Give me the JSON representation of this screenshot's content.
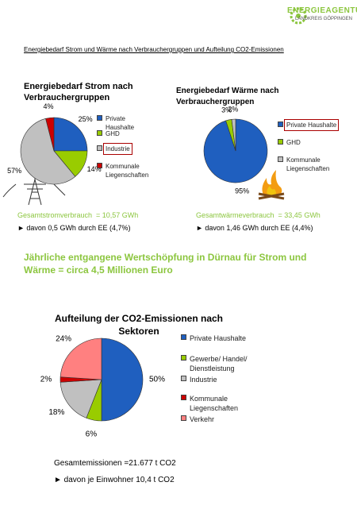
{
  "logo": {
    "title": "ENERGIEAGENTUR",
    "subtitle": "LANDKREIS GÖPPINGEN"
  },
  "heading": "Energiebedarf Strom und Wärme nach Verbrauchergruppen und Aufteilung CO2-Emissionen",
  "chart_data": [
    {
      "type": "pie",
      "title": "Energiebedarf Strom nach Verbrauchergruppen",
      "categories": [
        "Private Haushalte",
        "GHD",
        "Industrie",
        "Kommunale Liegenschaften"
      ],
      "values": [
        25,
        14,
        57,
        4
      ],
      "value_labels": [
        "25%",
        "14%",
        "57%",
        "4%"
      ],
      "colors": [
        "#1f5fbf",
        "#99cc00",
        "#c0c0c0",
        "#cc0000"
      ],
      "highlight": 2
    },
    {
      "type": "pie",
      "title": "Energiebedarf Wärme nach Verbrauchergruppen",
      "categories": [
        "Private Haushalte",
        "GHD",
        "Kommunale Liegenschaften"
      ],
      "values": [
        95,
        3,
        2
      ],
      "value_labels": [
        "95%",
        "3%",
        "2%"
      ],
      "colors": [
        "#1f5fbf",
        "#99cc00",
        "#c0c0c0"
      ],
      "highlight": 0
    },
    {
      "type": "pie",
      "title": "Aufteilung der CO2-Emissionen nach Sektoren",
      "categories": [
        "Private Haushalte",
        "Gewerbe/ Handel/ Dienstleistung",
        "Industrie",
        "Kommunale Liegenschaften",
        "Verkehr"
      ],
      "values": [
        50,
        6,
        18,
        2,
        24
      ],
      "value_labels": [
        "50%",
        "6%",
        "18%",
        "2%",
        "24%"
      ],
      "colors": [
        "#1f5fbf",
        "#99cc00",
        "#c0c0c0",
        "#cc0000",
        "#ff8080"
      ]
    }
  ],
  "stats": {
    "strom": "Gesamtstromverbrauch  = 10,57 GWh",
    "strom_ee": "► davon 0,5 GWh durch EE (4,7%)",
    "waerme": "Gesamtwärmeverbrauch  = 33,45 GWh",
    "waerme_ee": "► davon 1,46 GWh durch EE (4,4%)"
  },
  "headline": "Jährliche entgangene Wertschöpfung in Dürnau für Strom und Wärme = circa 4,5 Millionen Euro",
  "footer": {
    "total": "Gesamtemissionen =21.677 t CO2",
    "per_capita": "► davon je Einwohner 10,4 t CO2"
  }
}
